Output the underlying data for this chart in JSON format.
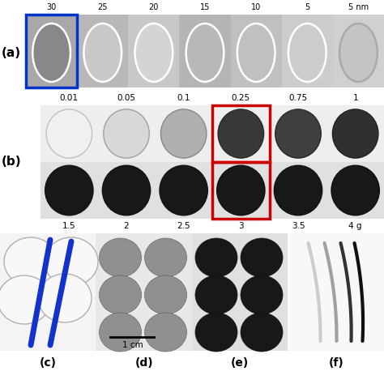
{
  "panel_a_label": "(a)",
  "panel_b_label": "(b)",
  "panel_c_label": "(c)",
  "panel_d_label": "(d)",
  "panel_e_label": "(e)",
  "panel_f_label": "(f)",
  "row_a_labels": [
    "30",
    "25",
    "20",
    "15",
    "10",
    "5",
    "5 nm"
  ],
  "row_b_top_labels": [
    "0.01",
    "0.05",
    "0.1",
    "0.25",
    "0.75",
    "1"
  ],
  "row_b_bot_labels": [
    "1.5",
    "2",
    "2.5",
    "3",
    "3.5",
    "4 g"
  ],
  "scale_bar_label": "1 cm",
  "bg_color": "#ffffff",
  "panel_a_bg": [
    "#b8b8b8",
    "#c4c4c4",
    "#cecece",
    "#c0c0c0",
    "#c8c8c8",
    "#d0d0d0",
    "#d8d8d8"
  ],
  "panel_a_blob_fill": [
    "#a0a0a0",
    "#d0d0d0",
    "#d8d8d8",
    "#c0c0c0",
    "#c8c8c8",
    "#cecece",
    "#d0d0d0"
  ],
  "panel_b_top_bg": "#e8e8e8",
  "panel_b_bot_bg": "#c8c8c8",
  "panel_b_top_blobs": [
    "#e8e8e8",
    "#d0d0d0",
    "#b0b0b0",
    "#404040",
    "#383838",
    "#282828"
  ],
  "panel_b_bot_blobs": [
    "#1a1a1a",
    "#1a1a1a",
    "#1a1a1a",
    "#1a1a1a",
    "#1a1a1a",
    "#1a1a1a"
  ],
  "blue_box_color": "#0033cc",
  "red_box_color": "#cc0000"
}
